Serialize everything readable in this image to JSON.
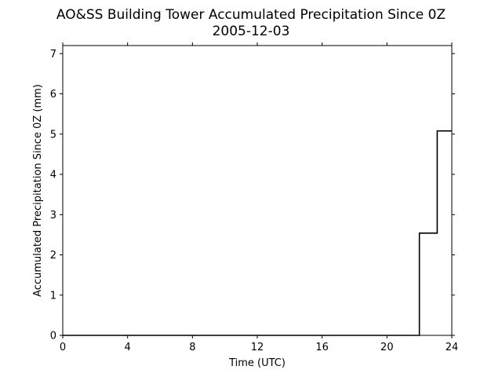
{
  "chart_data": {
    "type": "line",
    "line_style": "step",
    "title": "AO&SS Building Tower Accumulated Precipitation Since 0Z",
    "subtitle": "2005-12-03",
    "xlabel": "Time (UTC)",
    "ylabel": "Accumulated Precipitation Since 0Z (mm)",
    "xlim": [
      0,
      24
    ],
    "ylim": [
      0,
      7.2
    ],
    "xticks": [
      0,
      4,
      8,
      12,
      16,
      20,
      24
    ],
    "yticks": [
      0,
      1,
      2,
      3,
      4,
      5,
      6,
      7
    ],
    "grid": false,
    "legend": false,
    "colors": {
      "line": "#000000",
      "axes": "#000000",
      "background": "#ffffff"
    },
    "series": [
      {
        "x": [
          0,
          22,
          22,
          23.1,
          23.1,
          24
        ],
        "y": [
          0,
          0,
          2.54,
          2.54,
          5.08,
          5.08
        ]
      }
    ]
  }
}
